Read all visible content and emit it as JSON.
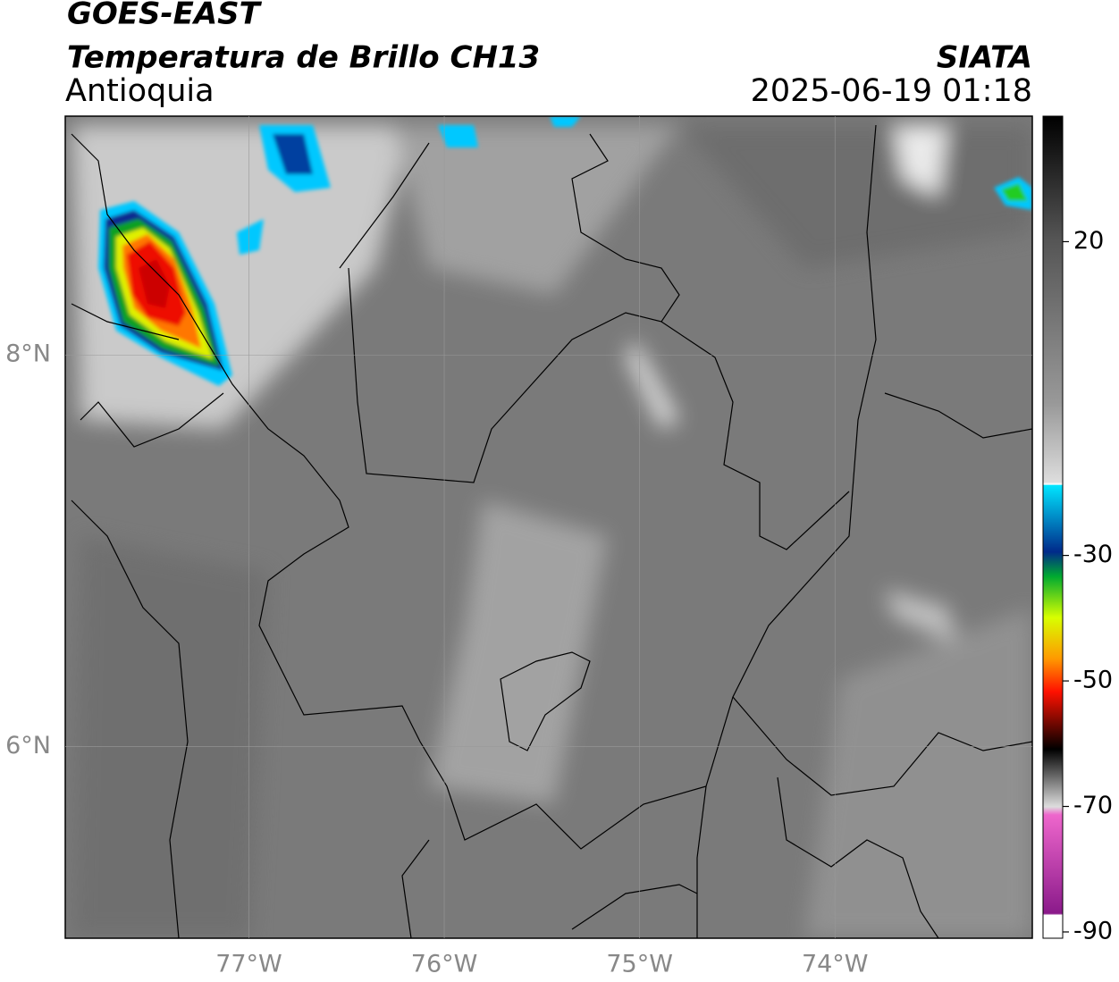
{
  "header": {
    "title": "GOES-EAST",
    "subtitle": "Temperatura de Brillo CH13",
    "region": "Antioquia",
    "source": "SIATA",
    "datetime": "2025-06-19 01:18"
  },
  "map": {
    "xlim": [
      -77.94,
      -72.99
    ],
    "ylim": [
      5.02,
      9.22
    ],
    "xticks": [
      {
        "value": -77,
        "label": "77°W"
      },
      {
        "value": -76,
        "label": "76°W"
      },
      {
        "value": -75,
        "label": "75°W"
      },
      {
        "value": -74,
        "label": "74°W"
      }
    ],
    "yticks": [
      {
        "value": 8,
        "label": "8°N"
      },
      {
        "value": 6,
        "label": "6°N"
      }
    ],
    "grid": true
  },
  "colorbar": {
    "lim": [
      -91,
      40
    ],
    "ticks": [
      20,
      -30,
      -50,
      -70,
      -90
    ]
  }
}
